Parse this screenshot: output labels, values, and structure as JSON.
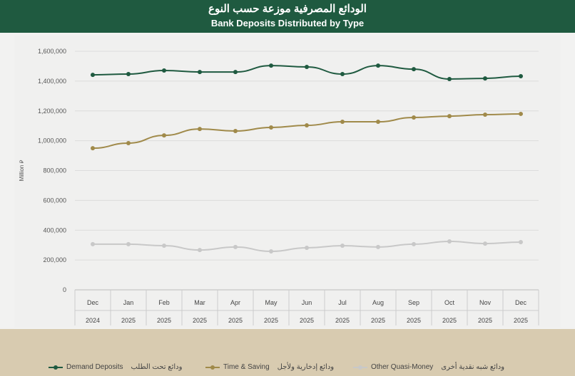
{
  "header": {
    "title_ar": "الودائع المصرفية موزعة حسب النوع",
    "title_en": "Bank Deposits Distributed by Type"
  },
  "chart_data": {
    "type": "line",
    "title": "Bank Deposits Distributed by Type",
    "ylabel": "Million ⃁",
    "ylim": [
      0,
      1600000
    ],
    "yticks": [
      "0",
      "200,000",
      "400,000",
      "600,000",
      "800,000",
      "1,000,000",
      "1,200,000",
      "1,400,000",
      "1,600,000"
    ],
    "categories": [
      [
        "Dec",
        "2024"
      ],
      [
        "Jan",
        "2025"
      ],
      [
        "Feb",
        "2025"
      ],
      [
        "Mar",
        "2025"
      ],
      [
        "Apr",
        "2025"
      ],
      [
        "May",
        "2025"
      ],
      [
        "Jun",
        "2025"
      ],
      [
        "Jul",
        "2025"
      ],
      [
        "Aug",
        "2025"
      ],
      [
        "Sep",
        "2025"
      ],
      [
        "Oct",
        "2025"
      ],
      [
        "Nov",
        "2025"
      ],
      [
        "Dec",
        "2025"
      ]
    ],
    "grid": true,
    "legend": "bottom",
    "series": [
      {
        "name": "Demand Deposits",
        "name_ar": "ودائع تحت الطلب",
        "color": "#1f5a40",
        "values": [
          1442000,
          1447000,
          1471000,
          1461000,
          1461000,
          1504000,
          1495000,
          1447000,
          1504000,
          1480000,
          1414000,
          1418000,
          1433000
        ]
      },
      {
        "name": "Time & Saving",
        "name_ar": "ودائع إدخارية ولأجل",
        "color": "#a08a4a",
        "values": [
          950000,
          984000,
          1036000,
          1079000,
          1065000,
          1089000,
          1103000,
          1127000,
          1127000,
          1156000,
          1165000,
          1175000,
          1180000
        ]
      },
      {
        "name": "Other Quasi-Money",
        "name_ar": "ودائع شبه نقدية أخرى",
        "color": "#c8c8c8",
        "values": [
          306000,
          306000,
          296000,
          267000,
          287000,
          258000,
          282000,
          296000,
          287000,
          306000,
          325000,
          310000,
          320000
        ]
      }
    ]
  }
}
